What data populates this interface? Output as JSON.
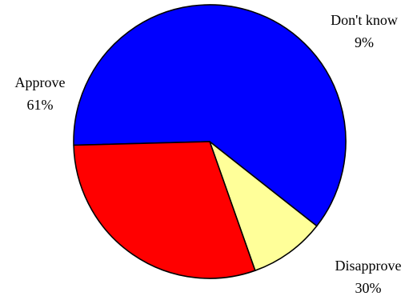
{
  "chart_data": {
    "type": "pie",
    "title": "",
    "slices": [
      {
        "label": "Approve",
        "value": 61,
        "display": "61%",
        "color": "#0000ff"
      },
      {
        "label": "Don't know",
        "value": 9,
        "display": "9%",
        "color": "#ffff99"
      },
      {
        "label": "Disapprove",
        "value": 30,
        "display": "30%",
        "color": "#ff0000"
      }
    ],
    "legend": "none"
  }
}
